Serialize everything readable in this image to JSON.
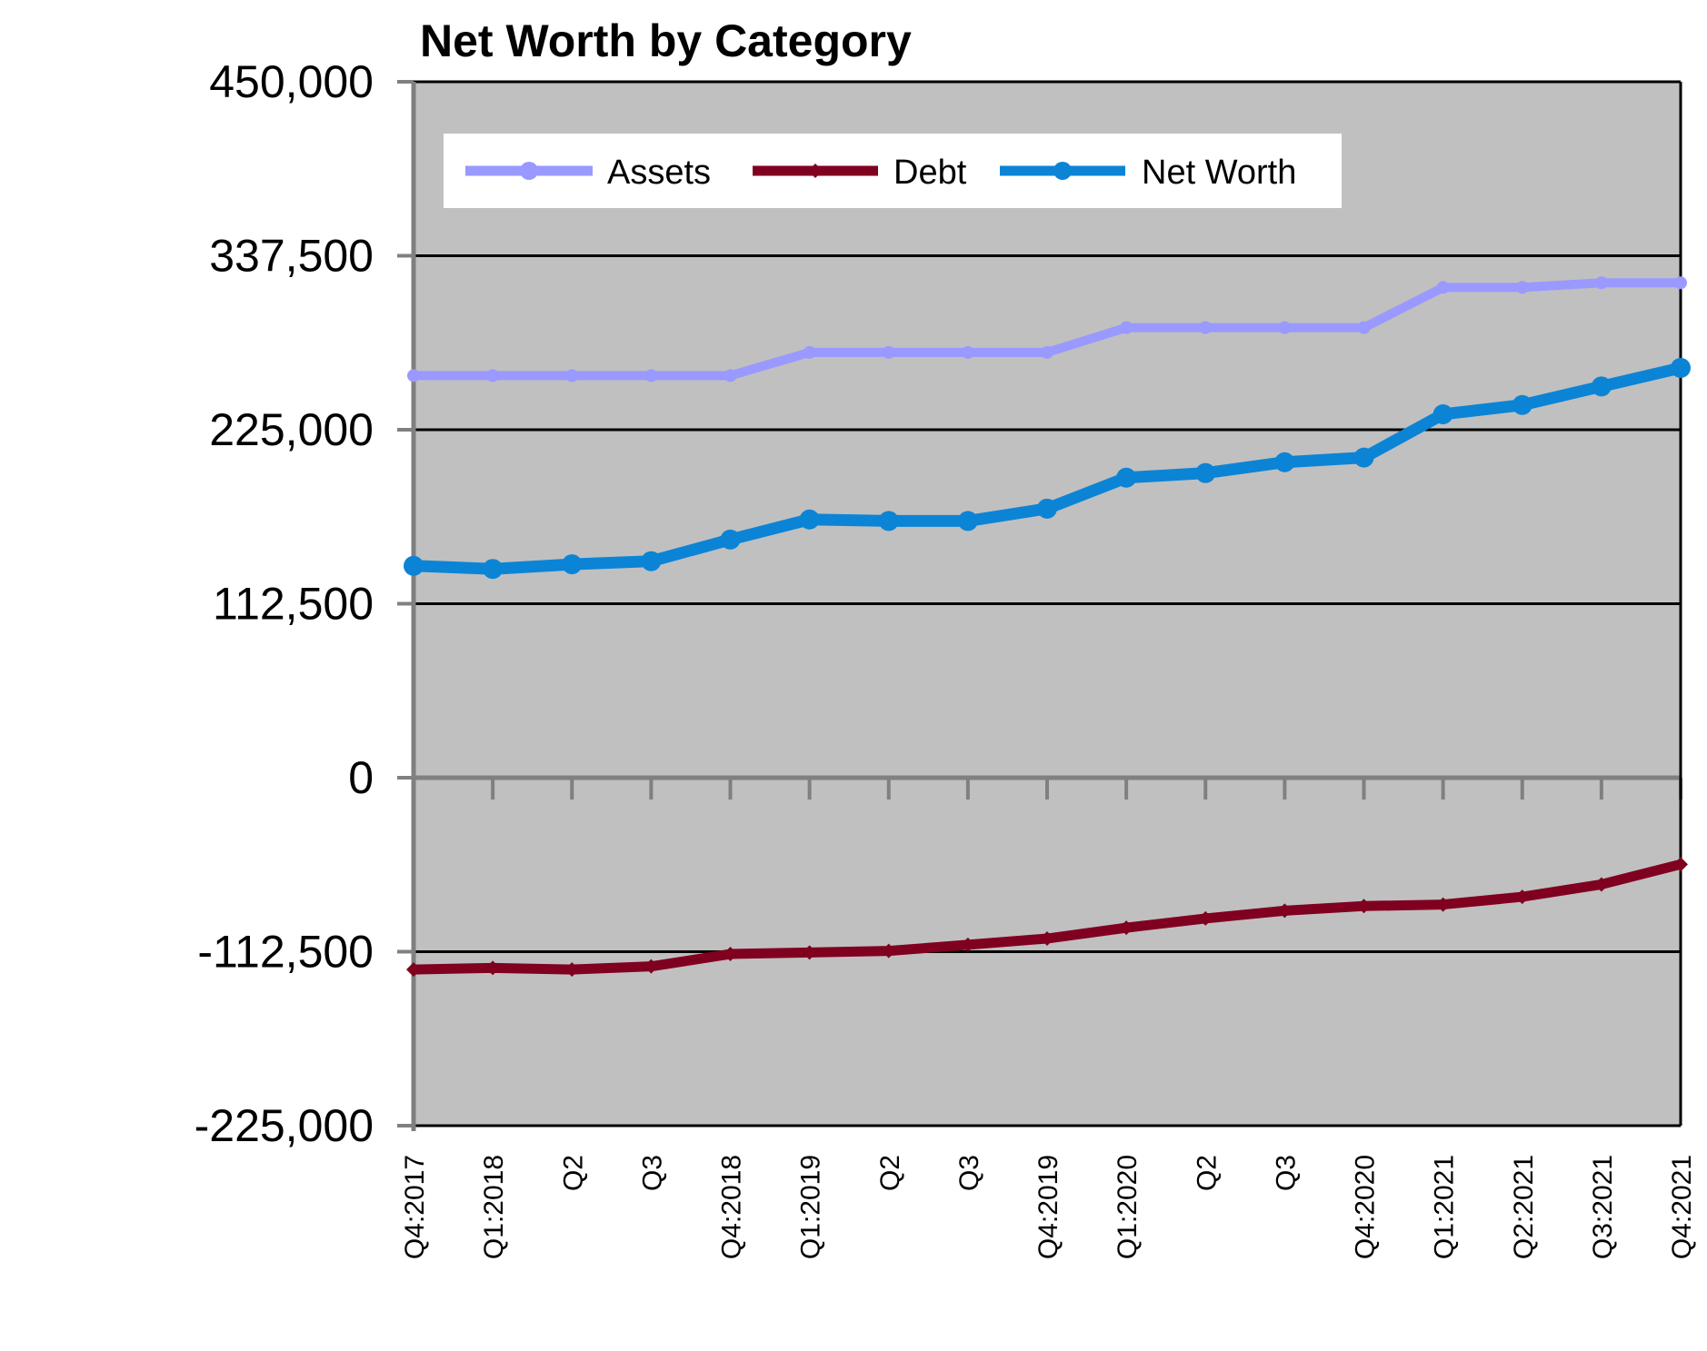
{
  "chart_data": {
    "type": "line",
    "title": "Net Worth by Category",
    "xlabel": "",
    "ylabel": "",
    "ylim": [
      -225000,
      450000
    ],
    "yticks": [
      "450,000",
      "337,500",
      "225,000",
      "112,500",
      "0",
      "-112,500",
      "-225,000"
    ],
    "ytick_values": [
      450000,
      337500,
      225000,
      112500,
      0,
      -112500,
      -225000
    ],
    "categories": [
      "Q4:2017",
      "Q1:2018",
      "Q2",
      "Q3",
      "Q4:2018",
      "Q1:2019",
      "Q2",
      "Q3",
      "Q4:2019",
      "Q1:2020",
      "Q2",
      "Q3",
      "Q4:2020",
      "Q1:2021",
      "Q2:2021",
      "Q3:2021",
      "Q4:2021"
    ],
    "grid": true,
    "legend_position": "top",
    "plot_background": "#c0c0c0",
    "series": [
      {
        "name": "Assets",
        "color": "#9999ff",
        "marker": "circle",
        "values": [
          260000,
          260000,
          260000,
          260000,
          260000,
          275000,
          275000,
          275000,
          275000,
          291000,
          291000,
          291000,
          291000,
          317000,
          317000,
          320000,
          320000
        ]
      },
      {
        "name": "Debt",
        "color": "#800020",
        "marker": "diamond",
        "values": [
          -124000,
          -123000,
          -124000,
          -122000,
          -114000,
          -113000,
          -112000,
          -108000,
          -104000,
          -97000,
          -91000,
          -86000,
          -83000,
          -82000,
          -77000,
          -69000,
          -56000
        ]
      },
      {
        "name": "Net Worth",
        "color": "#0b84d6",
        "marker": "circle",
        "values": [
          137000,
          135000,
          138000,
          140000,
          154000,
          167000,
          166000,
          166000,
          174000,
          194000,
          197000,
          204000,
          207000,
          235000,
          241000,
          253000,
          265000
        ]
      }
    ]
  }
}
